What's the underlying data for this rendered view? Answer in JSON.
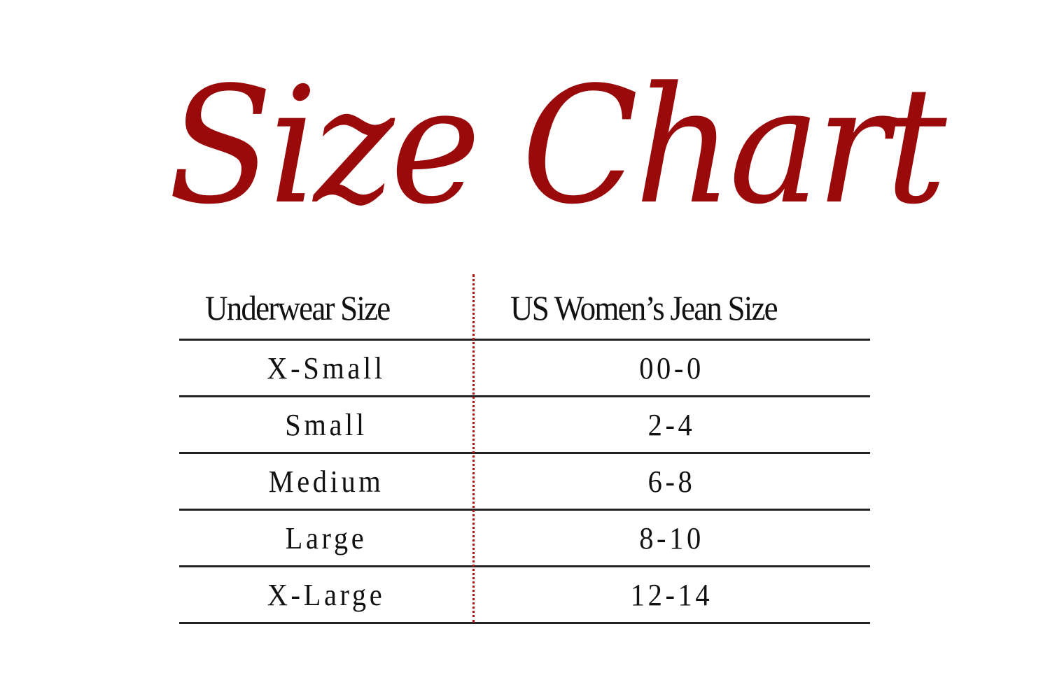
{
  "title": "Size Chart",
  "accent_color": "#9b0a0a",
  "table": {
    "headers": [
      "Underwear Size",
      "US Women’s Jean Size"
    ],
    "rows": [
      [
        "X-Small",
        "00-0"
      ],
      [
        "Small",
        "2-4"
      ],
      [
        "Medium",
        "6-8"
      ],
      [
        "Large",
        "8-10"
      ],
      [
        "X-Large",
        "12-14"
      ]
    ]
  }
}
